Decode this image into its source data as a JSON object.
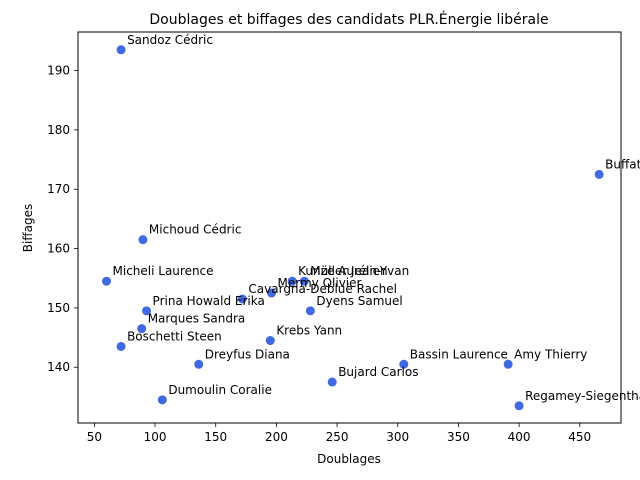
{
  "chart_data": {
    "type": "scatter",
    "title": "Doublages et biffages des candidats PLR.Énergie libérale",
    "xlabel": "Doublages",
    "ylabel": "Biffages",
    "xlim": [
      36.5,
      484
    ],
    "ylim": [
      130.6,
      196.5
    ],
    "xticks": [
      50,
      100,
      150,
      200,
      250,
      300,
      350,
      400,
      450
    ],
    "yticks": [
      140,
      150,
      160,
      170,
      180,
      190
    ],
    "grid": false,
    "color": "#4169e1",
    "points": [
      {
        "label": "Sandoz Cédric",
        "x": 72,
        "y": 193.5
      },
      {
        "label": "Buffat Michaël",
        "x": 466,
        "y": 172.5
      },
      {
        "label": "Michoud Cédric",
        "x": 90,
        "y": 161.5
      },
      {
        "label": "Micheli Laurence",
        "x": 60,
        "y": 154.5
      },
      {
        "label": "Kunze Aurélien",
        "x": 213,
        "y": 154.5
      },
      {
        "label": "Müller Jean-Yvan",
        "x": 223,
        "y": 154.5
      },
      {
        "label": "Mermy Olivier",
        "x": 196,
        "y": 152.5
      },
      {
        "label": "Cavargna-Debluë Rachel",
        "x": 172,
        "y": 151.5
      },
      {
        "label": "Dyens Samuel",
        "x": 228,
        "y": 149.5
      },
      {
        "label": "Prina Howald Erika",
        "x": 93,
        "y": 149.5
      },
      {
        "label": "Marques Sandra",
        "x": 89,
        "y": 146.5
      },
      {
        "label": "Krebs Yann",
        "x": 195,
        "y": 144.5
      },
      {
        "label": "Boschetti Steen",
        "x": 72,
        "y": 143.5
      },
      {
        "label": "Dreyfus Diana",
        "x": 136,
        "y": 140.5
      },
      {
        "label": "Bassin Laurence",
        "x": 305,
        "y": 140.5
      },
      {
        "label": "Amy Thierry",
        "x": 391,
        "y": 140.5
      },
      {
        "label": "Bujard Carlos",
        "x": 246,
        "y": 137.5
      },
      {
        "label": "Dumoulin Coralie",
        "x": 106,
        "y": 134.5
      },
      {
        "label": "Regamey-Siegenthaler Isabelle",
        "x": 400,
        "y": 133.5
      }
    ]
  }
}
